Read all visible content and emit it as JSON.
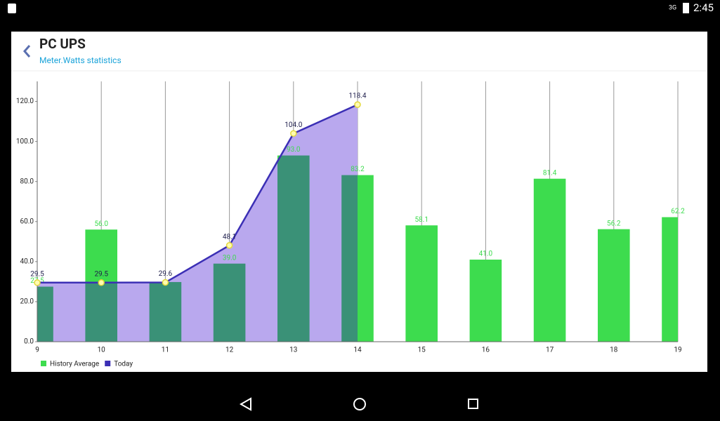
{
  "status_bar": {
    "network": "3G",
    "time": "2:45"
  },
  "header": {
    "title": "PC UPS",
    "subtitle": "Meter.Watts statistics"
  },
  "chart_data": {
    "type": "bar-line",
    "x": [
      9,
      10,
      11,
      12,
      13,
      14,
      15,
      16,
      17,
      18,
      19
    ],
    "xlim": [
      9,
      19
    ],
    "xticks": [
      9,
      10,
      11,
      12,
      13,
      14,
      15,
      16,
      17,
      18,
      19
    ],
    "ylim": [
      0,
      130
    ],
    "yticks": [
      {
        "value": 0,
        "label": "0.0"
      },
      {
        "value": 20,
        "label": "20.0"
      },
      {
        "value": 40,
        "label": "40.0"
      },
      {
        "value": 60,
        "label": "60.0"
      },
      {
        "value": 80,
        "label": "80.0"
      },
      {
        "value": 100,
        "label": "100.0"
      },
      {
        "value": 120,
        "label": "120.0"
      }
    ],
    "grid": "x",
    "legend": "bottom-left",
    "series": [
      {
        "name": "History Average",
        "type": "bar",
        "color": "#3ddc4e",
        "overlap_color": "#3a9177",
        "values": [
          27.5,
          56.0,
          29.8,
          39.0,
          93.0,
          83.2,
          58.1,
          41.0,
          81.4,
          56.2,
          62.2
        ],
        "value_labels": [
          "27.5",
          "56.0",
          null,
          "39.0",
          "93.0",
          "83.2",
          "58.1",
          "41.0",
          "81.4",
          "56.2",
          "62.2"
        ]
      },
      {
        "name": "Today",
        "type": "line",
        "color": "#3b2fb5",
        "area_color": "#b9a8ee",
        "values": [
          29.5,
          29.5,
          29.6,
          48.1,
          104.0,
          118.4,
          null,
          null,
          null,
          null,
          null
        ],
        "value_labels": [
          "29.5",
          "29.5",
          "29.6",
          "48.1",
          "104.0",
          "118.4",
          null,
          null,
          null,
          null,
          null
        ]
      }
    ]
  }
}
